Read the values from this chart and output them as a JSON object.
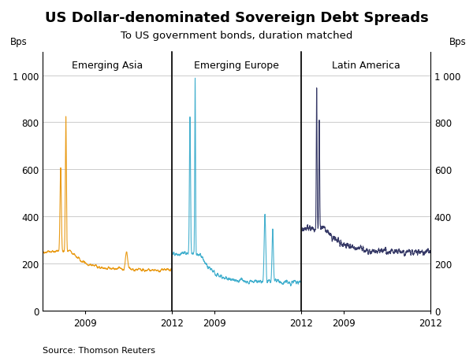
{
  "title": "US Dollar-denominated Sovereign Debt Spreads",
  "subtitle": "To US government bonds, duration matched",
  "ylabel_left": "Bps",
  "ylabel_right": "Bps",
  "source": "Source: Thomson Reuters",
  "regions": [
    "Emerging Asia",
    "Emerging Europe",
    "Latin America"
  ],
  "colors": [
    "#E8960A",
    "#3AACCC",
    "#2D3060"
  ],
  "ylim": [
    0,
    1100
  ],
  "yticks": [
    0,
    200,
    400,
    600,
    800,
    1000
  ],
  "ytick_labels": [
    "0",
    "200",
    "400",
    "600",
    "800",
    "1 000"
  ],
  "background_color": "#ffffff",
  "grid_color": "#cccccc"
}
